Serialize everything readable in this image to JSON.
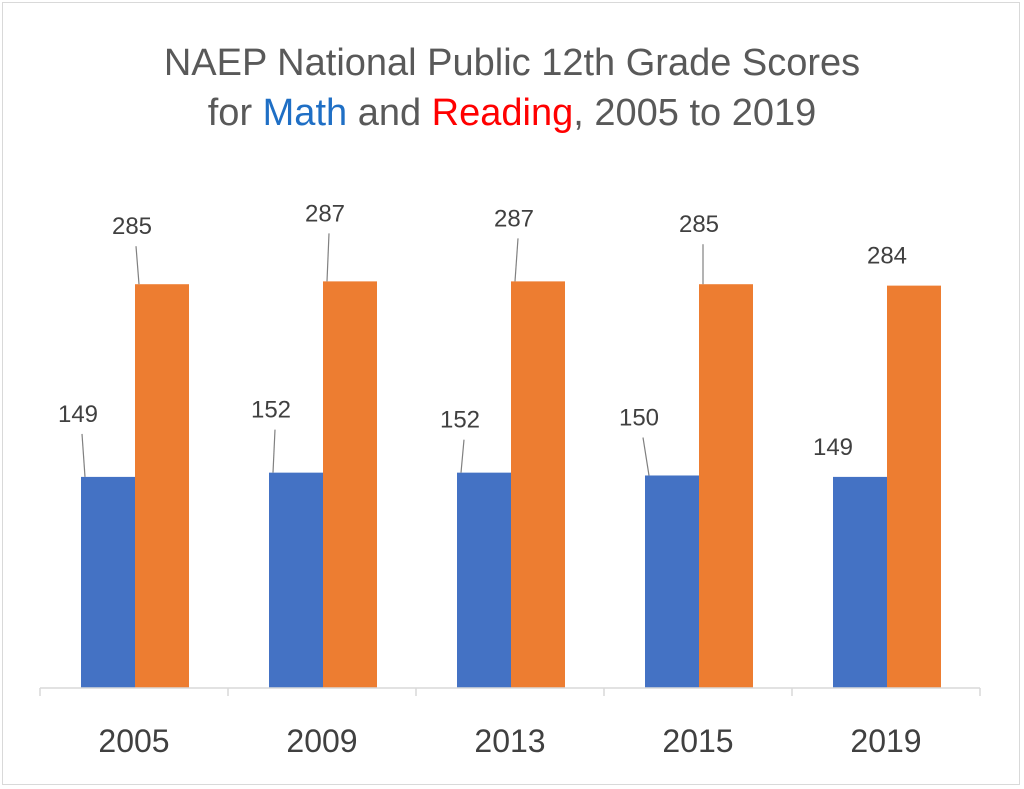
{
  "title": {
    "line1": "NAEP National Public 12th Grade Scores",
    "line2_prefix": "for ",
    "line2_math": "Math",
    "line2_mid": " and ",
    "line2_reading": "Reading",
    "line2_suffix": ", 2005 to 2019"
  },
  "chart_data": {
    "type": "bar",
    "title": "NAEP National Public 12th Grade Scores for Math and Reading, 2005 to 2019",
    "categories": [
      "2005",
      "2009",
      "2013",
      "2015",
      "2019"
    ],
    "series": [
      {
        "name": "Math",
        "values": [
          149,
          152,
          152,
          150,
          149
        ],
        "color": "#4472c4"
      },
      {
        "name": "Reading",
        "values": [
          285,
          287,
          287,
          285,
          284
        ],
        "color": "#ed7d31"
      }
    ],
    "ylim": [
      0,
      300
    ],
    "grid": false,
    "legend": "none",
    "xlabel": "",
    "ylabel": ""
  },
  "colors": {
    "math_title": "#1f6fc5",
    "reading_title": "#ff0000",
    "axis": "#d9d9d9",
    "label_text": "#404040",
    "tick_text": "#404040"
  }
}
